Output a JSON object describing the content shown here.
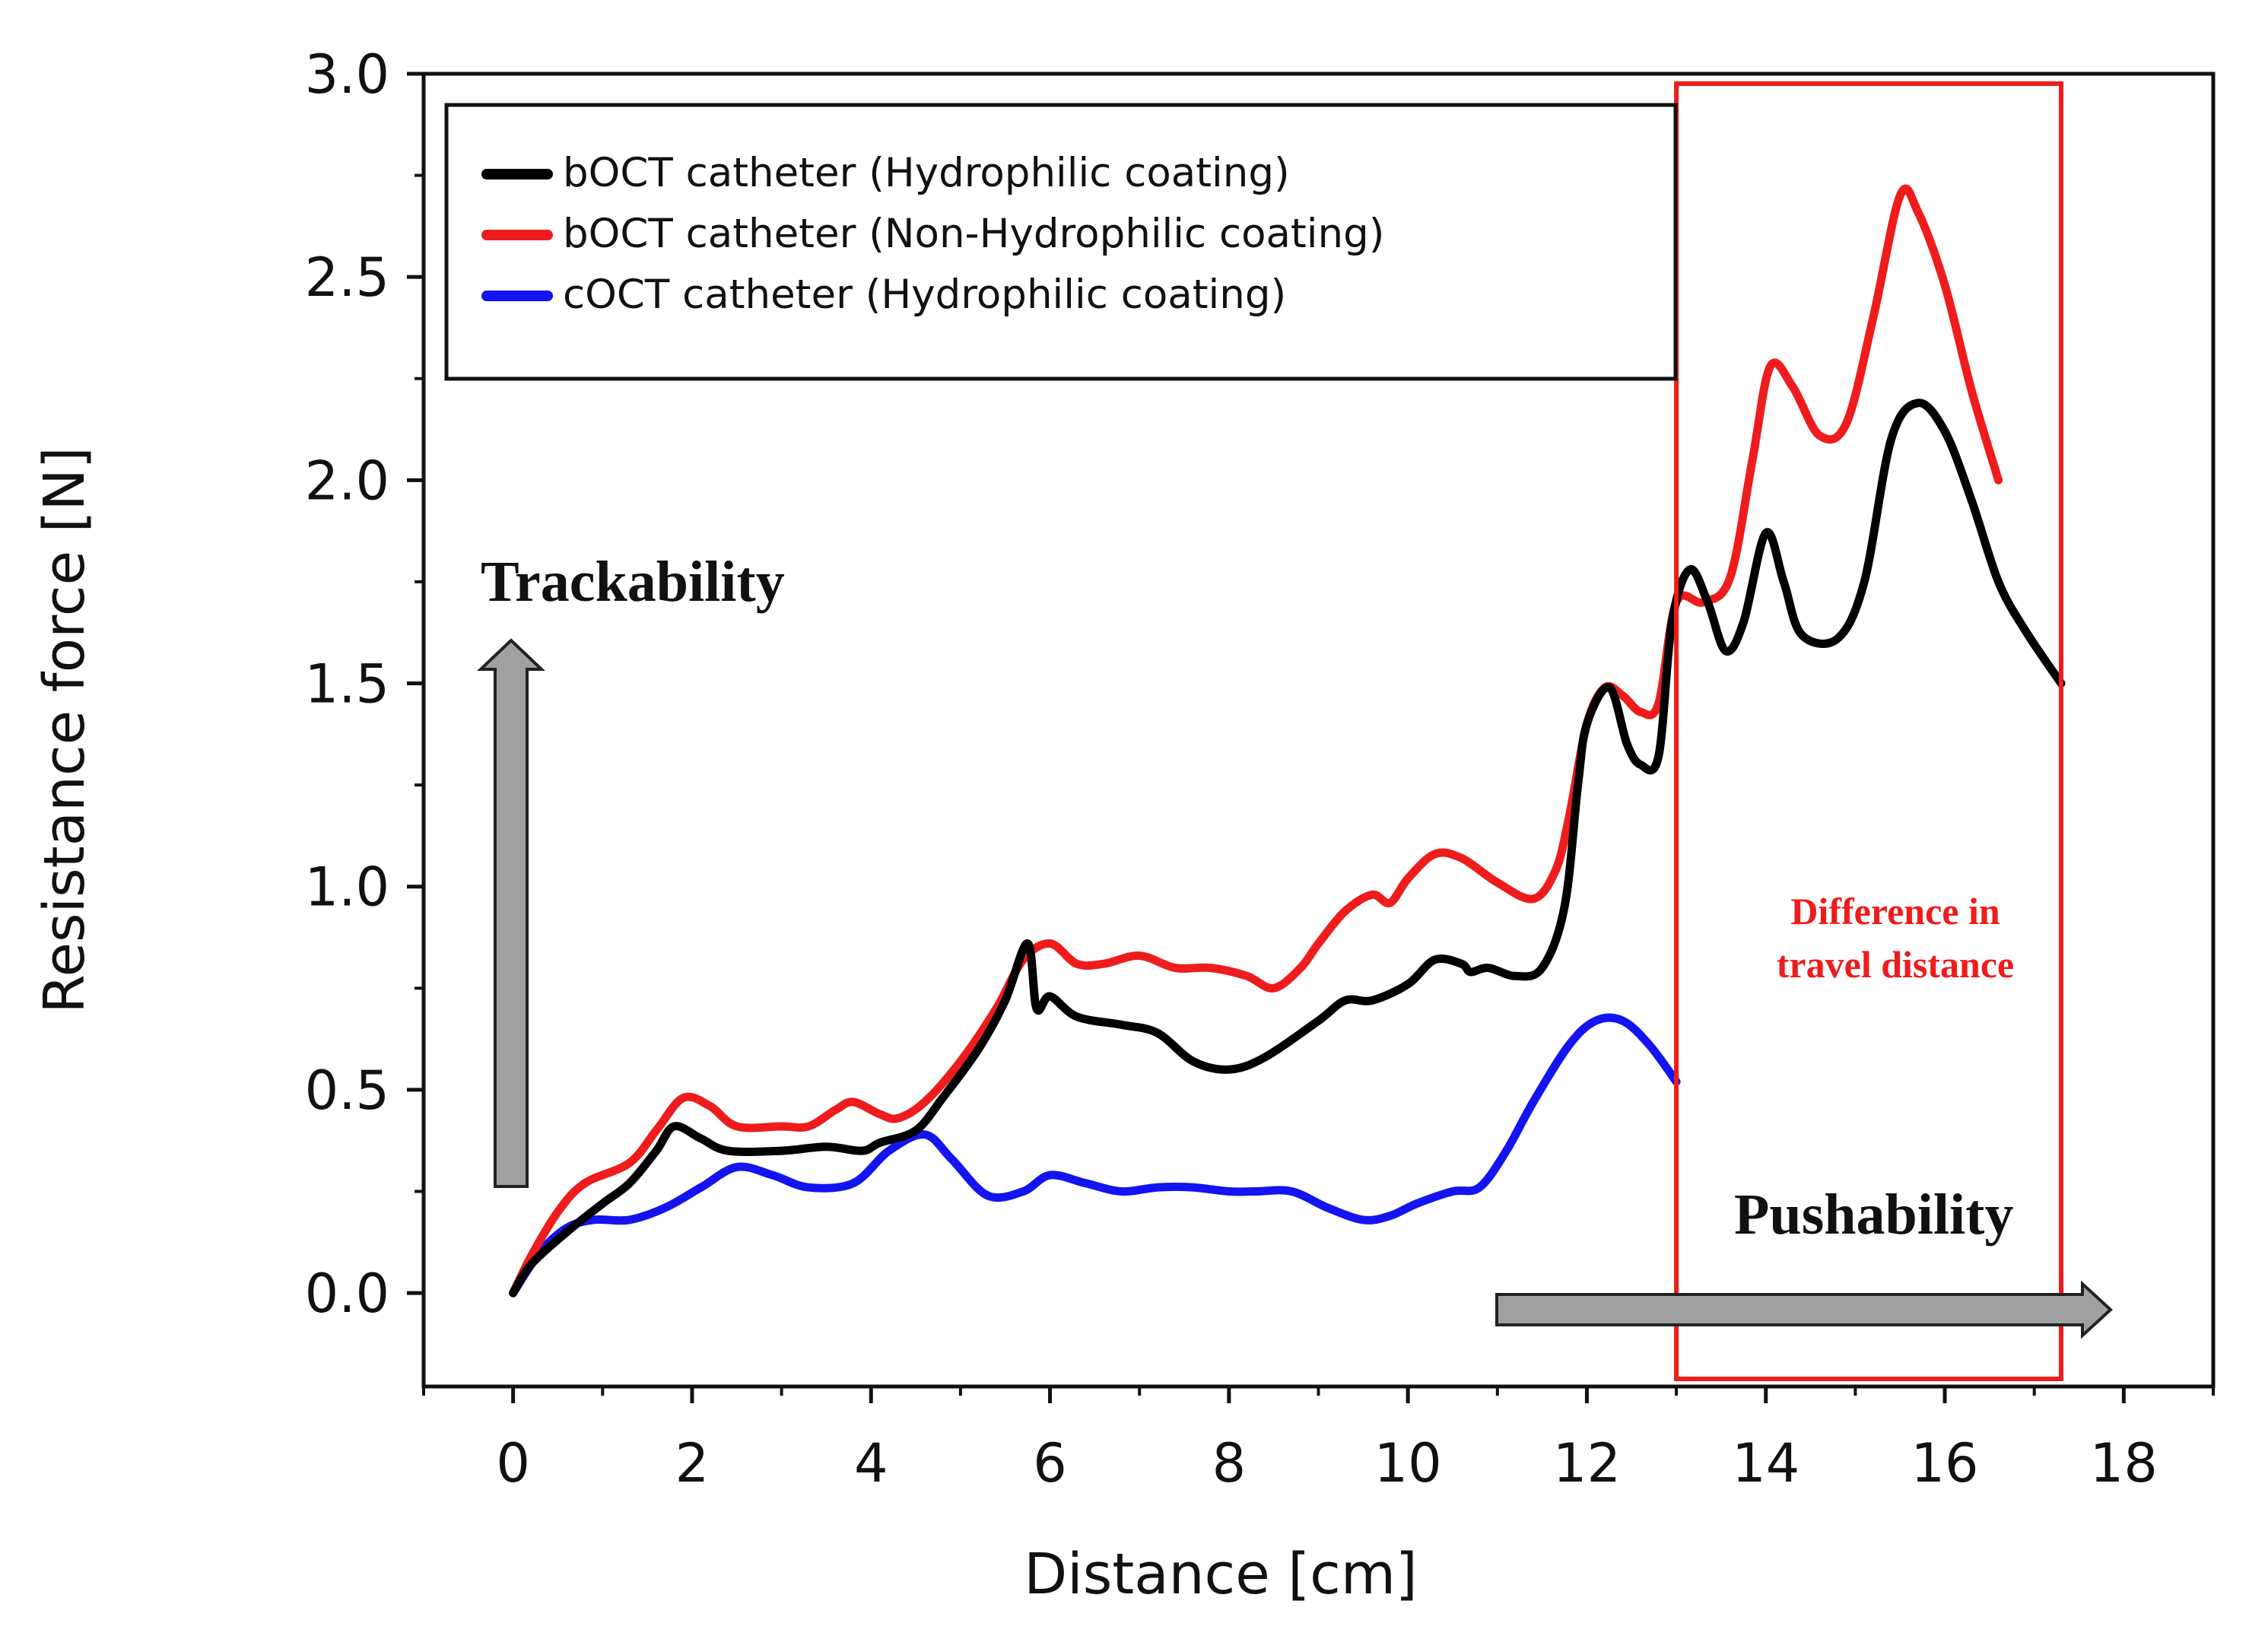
{
  "chart_data": {
    "type": "line",
    "xlabel": "Distance [cm]",
    "ylabel": "Resistance force [N]",
    "xlim": [
      -1,
      19
    ],
    "ylim": [
      -0.23,
      3.0
    ],
    "xticks": [
      0,
      2,
      4,
      6,
      8,
      10,
      12,
      14,
      16,
      18
    ],
    "xtick_labels": [
      "0",
      "2",
      "4",
      "6",
      "8",
      "10",
      "12",
      "14",
      "16",
      "18"
    ],
    "yticks": [
      0.0,
      0.5,
      1.0,
      1.5,
      2.0,
      2.5,
      3.0
    ],
    "ytick_labels": [
      "0.0",
      "0.5",
      "1.0",
      "1.5",
      "2.0",
      "2.5",
      "3.0"
    ],
    "grid": false,
    "legend_position": "top-left",
    "series": [
      {
        "name": "bOCT catheter (Hydrophilic coating)",
        "color": "#000000",
        "points": [
          [
            0,
            0
          ],
          [
            0.2,
            0.07
          ],
          [
            0.6,
            0.15
          ],
          [
            1.0,
            0.22
          ],
          [
            1.3,
            0.27
          ],
          [
            1.6,
            0.35
          ],
          [
            1.8,
            0.41
          ],
          [
            2.1,
            0.38
          ],
          [
            2.4,
            0.35
          ],
          [
            3.0,
            0.35
          ],
          [
            3.5,
            0.36
          ],
          [
            3.9,
            0.35
          ],
          [
            4.1,
            0.37
          ],
          [
            4.5,
            0.4
          ],
          [
            4.8,
            0.48
          ],
          [
            5.2,
            0.6
          ],
          [
            5.5,
            0.72
          ],
          [
            5.75,
            0.86
          ],
          [
            5.85,
            0.7
          ],
          [
            6.0,
            0.73
          ],
          [
            6.3,
            0.68
          ],
          [
            6.8,
            0.66
          ],
          [
            7.2,
            0.64
          ],
          [
            7.6,
            0.57
          ],
          [
            8.0,
            0.55
          ],
          [
            8.4,
            0.58
          ],
          [
            9.0,
            0.67
          ],
          [
            9.3,
            0.72
          ],
          [
            9.6,
            0.72
          ],
          [
            10.0,
            0.76
          ],
          [
            10.3,
            0.82
          ],
          [
            10.6,
            0.81
          ],
          [
            10.7,
            0.79
          ],
          [
            10.9,
            0.8
          ],
          [
            11.2,
            0.78
          ],
          [
            11.5,
            0.8
          ],
          [
            11.75,
            0.95
          ],
          [
            11.9,
            1.25
          ],
          [
            12.0,
            1.4
          ],
          [
            12.25,
            1.49
          ],
          [
            12.45,
            1.35
          ],
          [
            12.6,
            1.3
          ],
          [
            12.8,
            1.32
          ],
          [
            12.95,
            1.65
          ],
          [
            13.15,
            1.78
          ],
          [
            13.35,
            1.7
          ],
          [
            13.55,
            1.58
          ],
          [
            13.75,
            1.65
          ],
          [
            14.0,
            1.87
          ],
          [
            14.2,
            1.75
          ],
          [
            14.4,
            1.62
          ],
          [
            14.8,
            1.61
          ],
          [
            15.1,
            1.75
          ],
          [
            15.4,
            2.1
          ],
          [
            15.7,
            2.19
          ],
          [
            16.0,
            2.12
          ],
          [
            16.3,
            1.95
          ],
          [
            16.6,
            1.75
          ],
          [
            16.9,
            1.63
          ],
          [
            17.3,
            1.5
          ]
        ]
      },
      {
        "name": "bOCT catheter (Non-Hydrophilic coating)",
        "color": "#ee1c1c",
        "points": [
          [
            0,
            0
          ],
          [
            0.2,
            0.09
          ],
          [
            0.5,
            0.2
          ],
          [
            0.8,
            0.27
          ],
          [
            1.3,
            0.32
          ],
          [
            1.6,
            0.4
          ],
          [
            1.9,
            0.48
          ],
          [
            2.2,
            0.46
          ],
          [
            2.5,
            0.41
          ],
          [
            3.0,
            0.41
          ],
          [
            3.3,
            0.41
          ],
          [
            3.6,
            0.45
          ],
          [
            3.8,
            0.47
          ],
          [
            4.1,
            0.44
          ],
          [
            4.3,
            0.43
          ],
          [
            4.6,
            0.47
          ],
          [
            5.0,
            0.57
          ],
          [
            5.4,
            0.7
          ],
          [
            5.7,
            0.82
          ],
          [
            6.0,
            0.86
          ],
          [
            6.3,
            0.81
          ],
          [
            6.6,
            0.81
          ],
          [
            7.0,
            0.83
          ],
          [
            7.4,
            0.8
          ],
          [
            7.8,
            0.8
          ],
          [
            8.2,
            0.78
          ],
          [
            8.5,
            0.75
          ],
          [
            8.8,
            0.8
          ],
          [
            9.0,
            0.86
          ],
          [
            9.3,
            0.94
          ],
          [
            9.6,
            0.98
          ],
          [
            9.8,
            0.96
          ],
          [
            10.0,
            1.02
          ],
          [
            10.3,
            1.08
          ],
          [
            10.6,
            1.07
          ],
          [
            11.0,
            1.01
          ],
          [
            11.4,
            0.97
          ],
          [
            11.65,
            1.04
          ],
          [
            11.8,
            1.17
          ],
          [
            12.0,
            1.4
          ],
          [
            12.2,
            1.49
          ],
          [
            12.4,
            1.47
          ],
          [
            12.6,
            1.43
          ],
          [
            12.8,
            1.45
          ],
          [
            13.0,
            1.7
          ],
          [
            13.3,
            1.7
          ],
          [
            13.6,
            1.76
          ],
          [
            13.85,
            2.05
          ],
          [
            14.05,
            2.28
          ],
          [
            14.3,
            2.23
          ],
          [
            14.6,
            2.11
          ],
          [
            14.9,
            2.14
          ],
          [
            15.2,
            2.4
          ],
          [
            15.5,
            2.7
          ],
          [
            15.7,
            2.66
          ],
          [
            16.0,
            2.48
          ],
          [
            16.3,
            2.22
          ],
          [
            16.6,
            2.0
          ]
        ]
      },
      {
        "name": "cOCT catheter (Hydrophilic coating)",
        "color": "#1414f0",
        "points": [
          [
            0,
            0
          ],
          [
            0.3,
            0.1
          ],
          [
            0.6,
            0.16
          ],
          [
            0.9,
            0.18
          ],
          [
            1.3,
            0.18
          ],
          [
            1.7,
            0.21
          ],
          [
            2.1,
            0.26
          ],
          [
            2.5,
            0.31
          ],
          [
            2.9,
            0.29
          ],
          [
            3.3,
            0.26
          ],
          [
            3.8,
            0.27
          ],
          [
            4.2,
            0.35
          ],
          [
            4.6,
            0.39
          ],
          [
            4.9,
            0.33
          ],
          [
            5.3,
            0.24
          ],
          [
            5.7,
            0.25
          ],
          [
            6.0,
            0.29
          ],
          [
            6.4,
            0.27
          ],
          [
            6.8,
            0.25
          ],
          [
            7.2,
            0.26
          ],
          [
            7.6,
            0.26
          ],
          [
            8.0,
            0.25
          ],
          [
            8.3,
            0.25
          ],
          [
            8.7,
            0.25
          ],
          [
            9.1,
            0.21
          ],
          [
            9.5,
            0.18
          ],
          [
            9.8,
            0.19
          ],
          [
            10.1,
            0.22
          ],
          [
            10.5,
            0.25
          ],
          [
            10.8,
            0.26
          ],
          [
            11.1,
            0.35
          ],
          [
            11.4,
            0.47
          ],
          [
            11.8,
            0.61
          ],
          [
            12.1,
            0.67
          ],
          [
            12.4,
            0.67
          ],
          [
            12.7,
            0.61
          ],
          [
            13.0,
            0.52
          ]
        ]
      }
    ],
    "annotations": [
      {
        "id": "trackability",
        "text": "Trackability",
        "direction": "up"
      },
      {
        "id": "pushability",
        "text": "Pushability",
        "direction": "right"
      },
      {
        "id": "travel",
        "text_lines": [
          "Difference in",
          "travel distance"
        ],
        "box_x_range": [
          13.0,
          17.3
        ]
      }
    ]
  },
  "colors": {
    "axis": "#111111",
    "highlight_box": "#ee1c1c",
    "arrow_fill": "#a0a0a0"
  }
}
